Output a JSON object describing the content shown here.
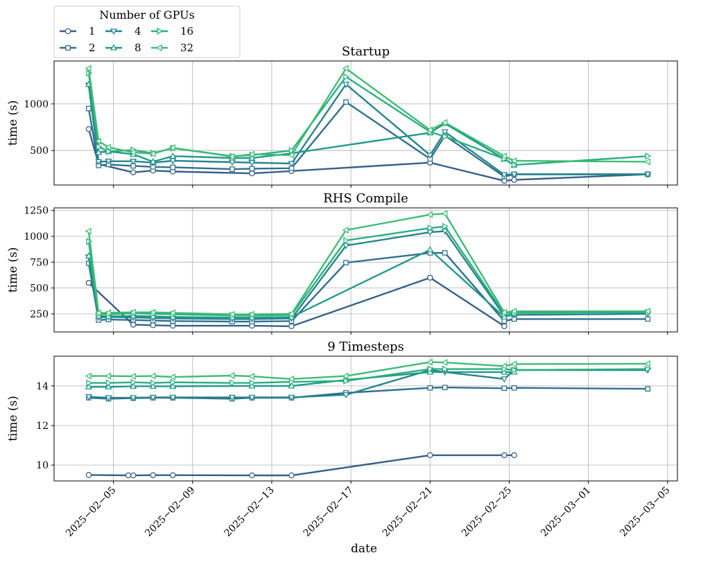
{
  "legend": {
    "title": "Number of GPUs",
    "entries": [
      {
        "label": "1",
        "color": "#365f8b",
        "marker": "circle"
      },
      {
        "label": "2",
        "color": "#2e6f8e",
        "marker": "square"
      },
      {
        "label": "4",
        "color": "#25848e",
        "marker": "triangle-down"
      },
      {
        "label": "8",
        "color": "#1f9a8a",
        "marker": "triangle-up"
      },
      {
        "label": "16",
        "color": "#29af7f",
        "marker": "triangle-right"
      },
      {
        "label": "32",
        "color": "#3fbc73",
        "marker": "triangle-left"
      }
    ]
  },
  "xlabel": "date",
  "x_ticks": [
    "2025−02−05",
    "2025−02−09",
    "2025−02−13",
    "2025−02−17",
    "2025−02−21",
    "2025−02−25",
    "2025−03−01",
    "2025−03−05"
  ],
  "chart_data": [
    {
      "type": "line",
      "title": "Startup",
      "xlabel": "date",
      "ylabel": "time (s)",
      "x_range": [
        "2025-02-02",
        "2025-03-05 12:00"
      ],
      "ylim": [
        130,
        1460
      ],
      "yticks": [
        500,
        1000
      ],
      "grid": true,
      "series": [
        {
          "name": "1",
          "x": [
            "2025-02-03 18:00",
            "2025-02-04 06:00",
            "2025-02-06",
            "2025-02-07",
            "2025-02-08",
            "2025-02-12",
            "2025-02-14",
            "2025-02-21",
            "2025-02-24 18:00",
            "2025-02-25 06:00",
            "2025-03-04"
          ],
          "values": [
            730,
            355,
            265,
            285,
            275,
            255,
            280,
            370,
            175,
            185,
            245
          ]
        },
        {
          "name": "2",
          "x": [
            "2025-02-03 18:00",
            "2025-02-04 06:00",
            "2025-02-04 18:00",
            "2025-02-06",
            "2025-02-07",
            "2025-02-08",
            "2025-02-11",
            "2025-02-12",
            "2025-02-14",
            "2025-02-16 18:00",
            "2025-02-21",
            "2025-02-21 18:00",
            "2025-02-24 18:00",
            "2025-02-25 06:00",
            "2025-03-04"
          ],
          "values": [
            950,
            340,
            350,
            335,
            325,
            320,
            300,
            305,
            310,
            1020,
            410,
            660,
            220,
            245,
            245
          ]
        },
        {
          "name": "4",
          "x": [
            "2025-02-03 18:00",
            "2025-02-04 06:00",
            "2025-02-04 18:00",
            "2025-02-06",
            "2025-02-07",
            "2025-02-08",
            "2025-02-11",
            "2025-02-12",
            "2025-02-14",
            "2025-02-16 18:00",
            "2025-02-21",
            "2025-02-21 18:00",
            "2025-02-24 18:00",
            "2025-02-25 06:00",
            "2025-03-04"
          ],
          "values": [
            1200,
            380,
            385,
            385,
            370,
            390,
            375,
            370,
            360,
            1210,
            450,
            700,
            240,
            245,
            245
          ]
        },
        {
          "name": "8",
          "x": [
            "2025-02-03 18:00",
            "2025-02-04 06:00",
            "2025-02-04 18:00",
            "2025-02-06",
            "2025-02-07",
            "2025-02-08",
            "2025-02-11",
            "2025-02-12",
            "2025-02-14",
            "2025-02-21",
            "2025-02-21 18:00",
            "2025-02-24 18:00",
            "2025-02-25 06:00"
          ],
          "values": [
            1210,
            480,
            490,
            460,
            380,
            440,
            420,
            420,
            470,
            690,
            790,
            410,
            345
          ]
        },
        {
          "name": "16",
          "x": [
            "2025-02-03 18:00",
            "2025-02-04 06:00",
            "2025-02-04 18:00",
            "2025-02-06",
            "2025-02-07",
            "2025-02-08",
            "2025-02-11",
            "2025-02-12",
            "2025-02-14",
            "2025-02-16 18:00",
            "2025-02-21",
            "2025-02-21 18:00",
            "2025-02-24 18:00",
            "2025-02-25 06:00",
            "2025-03-04"
          ],
          "values": [
            1330,
            540,
            490,
            505,
            470,
            525,
            440,
            450,
            500,
            1290,
            700,
            650,
            410,
            345,
            440
          ]
        },
        {
          "name": "32",
          "x": [
            "2025-02-03 18:00",
            "2025-02-04 06:00",
            "2025-02-04 18:00",
            "2025-02-06",
            "2025-02-07",
            "2025-02-08",
            "2025-02-11",
            "2025-02-12",
            "2025-02-14",
            "2025-02-16 18:00",
            "2025-02-21",
            "2025-02-21 18:00",
            "2025-02-24 18:00",
            "2025-02-25 06:00",
            "2025-03-04"
          ],
          "values": [
            1380,
            600,
            535,
            480,
            465,
            530,
            435,
            460,
            450,
            1380,
            720,
            800,
            440,
            390,
            380
          ]
        }
      ]
    },
    {
      "type": "line",
      "title": "RHS Compile",
      "xlabel": "date",
      "ylabel": "time (s)",
      "x_range": [
        "2025-02-02",
        "2025-03-05 12:00"
      ],
      "ylim": [
        75,
        1275
      ],
      "yticks": [
        250,
        500,
        750,
        1000,
        1250
      ],
      "grid": true,
      "series": [
        {
          "name": "1",
          "x": [
            "2025-02-03 18:00",
            "2025-02-06",
            "2025-02-07",
            "2025-02-08",
            "2025-02-12",
            "2025-02-14",
            "2025-02-21",
            "2025-02-24 18:00"
          ],
          "values": [
            550,
            145,
            140,
            135,
            135,
            130,
            600,
            130
          ]
        },
        {
          "name": "2",
          "x": [
            "2025-02-03 18:00",
            "2025-02-04 06:00",
            "2025-02-04 18:00",
            "2025-02-06",
            "2025-02-07",
            "2025-02-08",
            "2025-02-11",
            "2025-02-12",
            "2025-02-14",
            "2025-02-16 18:00",
            "2025-02-21",
            "2025-02-21 18:00",
            "2025-02-24 18:00",
            "2025-02-25 06:00",
            "2025-03-04"
          ],
          "values": [
            740,
            190,
            195,
            190,
            185,
            180,
            175,
            175,
            180,
            745,
            840,
            840,
            180,
            200,
            200
          ]
        },
        {
          "name": "4",
          "x": [
            "2025-02-03 18:00",
            "2025-02-04 06:00",
            "2025-02-04 18:00",
            "2025-02-06",
            "2025-02-07",
            "2025-02-08",
            "2025-02-11",
            "2025-02-12",
            "2025-02-14",
            "2025-02-16 18:00",
            "2025-02-21",
            "2025-02-21 18:00",
            "2025-02-24 18:00",
            "2025-02-25 06:00",
            "2025-03-04"
          ],
          "values": [
            800,
            215,
            220,
            215,
            210,
            205,
            200,
            200,
            205,
            910,
            1040,
            1050,
            230,
            240,
            250
          ]
        },
        {
          "name": "8",
          "x": [
            "2025-02-03 18:00",
            "2025-02-04 06:00",
            "2025-02-04 18:00",
            "2025-02-06",
            "2025-02-07",
            "2025-02-08",
            "2025-02-11",
            "2025-02-12",
            "2025-02-14",
            "2025-02-21",
            "2025-02-24 18:00",
            "2025-02-25 06:00"
          ],
          "values": [
            810,
            230,
            225,
            230,
            225,
            220,
            215,
            215,
            220,
            870,
            220,
            250
          ]
        },
        {
          "name": "16",
          "x": [
            "2025-02-03 18:00",
            "2025-02-04 06:00",
            "2025-02-04 18:00",
            "2025-02-06",
            "2025-02-07",
            "2025-02-08",
            "2025-02-11",
            "2025-02-12",
            "2025-02-14",
            "2025-02-16 18:00",
            "2025-02-21",
            "2025-02-21 18:00",
            "2025-02-24 18:00",
            "2025-02-25 06:00",
            "2025-03-04"
          ],
          "values": [
            950,
            250,
            245,
            255,
            250,
            245,
            235,
            235,
            240,
            960,
            1080,
            1095,
            250,
            260,
            265
          ]
        },
        {
          "name": "32",
          "x": [
            "2025-02-03 18:00",
            "2025-02-04 06:00",
            "2025-02-04 18:00",
            "2025-02-06",
            "2025-02-07",
            "2025-02-08",
            "2025-02-11",
            "2025-02-12",
            "2025-02-14",
            "2025-02-16 18:00",
            "2025-02-21",
            "2025-02-21 18:00",
            "2025-02-24 18:00",
            "2025-02-25 06:00",
            "2025-03-04"
          ],
          "values": [
            1050,
            260,
            260,
            265,
            265,
            260,
            245,
            245,
            250,
            1060,
            1210,
            1220,
            265,
            275,
            275
          ]
        }
      ]
    },
    {
      "type": "line",
      "title": "9 Timesteps",
      "xlabel": "date",
      "ylabel": "time (s)",
      "x_range": [
        "2025-02-02",
        "2025-03-05 12:00"
      ],
      "ylim": [
        9.2,
        15.5
      ],
      "yticks": [
        10,
        12,
        14
      ],
      "grid": true,
      "series": [
        {
          "name": "1",
          "x": [
            "2025-02-03 18:00",
            "2025-02-05 18:00",
            "2025-02-06",
            "2025-02-07",
            "2025-02-08",
            "2025-02-12",
            "2025-02-14",
            "2025-02-21",
            "2025-02-24 18:00",
            "2025-02-25 06:00"
          ],
          "values": [
            9.5,
            9.48,
            9.48,
            9.49,
            9.49,
            9.48,
            9.48,
            10.5,
            10.5,
            10.5
          ]
        },
        {
          "name": "2",
          "x": [
            "2025-02-03 18:00",
            "2025-02-04 18:00",
            "2025-02-06",
            "2025-02-07",
            "2025-02-08",
            "2025-02-11",
            "2025-02-12",
            "2025-02-14",
            "2025-02-16 18:00",
            "2025-02-21",
            "2025-02-21 18:00",
            "2025-02-24 18:00",
            "2025-02-25 06:00",
            "2025-03-04"
          ],
          "values": [
            13.4,
            13.35,
            13.38,
            13.4,
            13.4,
            13.35,
            13.4,
            13.4,
            13.65,
            13.9,
            13.92,
            13.88,
            13.9,
            13.85
          ]
        },
        {
          "name": "4",
          "x": [
            "2025-02-03 18:00",
            "2025-02-04 18:00",
            "2025-02-06",
            "2025-02-07",
            "2025-02-08",
            "2025-02-11",
            "2025-02-12",
            "2025-02-14",
            "2025-02-16 18:00",
            "2025-02-21",
            "2025-02-21 18:00",
            "2025-02-24 18:00",
            "2025-02-25 06:00",
            "2025-03-04"
          ],
          "values": [
            13.45,
            13.4,
            13.4,
            13.42,
            13.42,
            13.42,
            13.42,
            13.42,
            13.55,
            14.8,
            14.7,
            14.35,
            14.8,
            14.8
          ]
        },
        {
          "name": "8",
          "x": [
            "2025-02-03 18:00",
            "2025-02-04 18:00",
            "2025-02-06",
            "2025-02-07",
            "2025-02-08",
            "2025-02-12",
            "2025-02-14",
            "2025-02-16 18:00",
            "2025-02-21",
            "2025-02-24 18:00",
            "2025-02-25 06:00"
          ],
          "values": [
            13.95,
            13.95,
            13.98,
            13.98,
            13.98,
            14.0,
            14.0,
            14.3,
            14.7,
            14.7,
            14.7
          ]
        },
        {
          "name": "16",
          "x": [
            "2025-02-03 18:00",
            "2025-02-04 18:00",
            "2025-02-06",
            "2025-02-07",
            "2025-02-08",
            "2025-02-11",
            "2025-02-12",
            "2025-02-14",
            "2025-02-16 18:00",
            "2025-02-21",
            "2025-02-21 18:00",
            "2025-02-24 18:00",
            "2025-02-25 06:00",
            "2025-03-04"
          ],
          "values": [
            14.15,
            14.15,
            14.18,
            14.15,
            14.18,
            14.15,
            14.15,
            14.2,
            14.25,
            14.85,
            14.85,
            14.85,
            14.8,
            14.85
          ]
        },
        {
          "name": "32",
          "x": [
            "2025-02-03 18:00",
            "2025-02-04 18:00",
            "2025-02-06",
            "2025-02-07",
            "2025-02-08",
            "2025-02-11",
            "2025-02-12",
            "2025-02-14",
            "2025-02-16 18:00",
            "2025-02-21",
            "2025-02-21 18:00",
            "2025-02-24 18:00",
            "2025-02-25 06:00",
            "2025-03-04"
          ],
          "values": [
            14.5,
            14.5,
            14.48,
            14.5,
            14.45,
            14.52,
            14.48,
            14.35,
            14.5,
            15.2,
            15.18,
            15.0,
            15.1,
            15.12
          ]
        }
      ]
    }
  ]
}
